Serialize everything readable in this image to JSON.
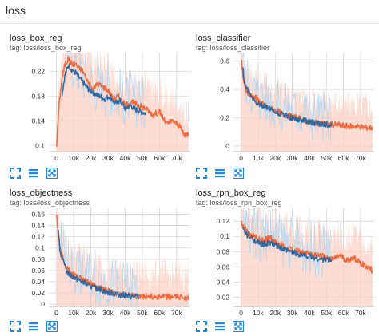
{
  "header": {
    "title": "loss"
  },
  "colors": {
    "series_smoothed": "#f4693b",
    "series_raw_bg": "#fbd0c4",
    "series_blue": "#2e6aa3",
    "series_blue_light": "#b8d8ee",
    "grid": "#d6d6d6",
    "control_icon": "#1e88e5"
  },
  "controls": {
    "icons": [
      "fit-domain-icon",
      "data-table-icon",
      "expand-chart-icon"
    ]
  },
  "cards": [
    {
      "id": "box_reg",
      "title": "loss_box_reg",
      "tag": "tag: loss/loss_box_reg",
      "chart_data": {
        "type": "line",
        "xlabel": "",
        "ylabel": "",
        "xlim": [
          -4500,
          78000
        ],
        "ylim": [
          0.09,
          0.25
        ],
        "y_ticks": [
          0.1,
          0.14,
          0.18,
          0.22
        ],
        "y_tick_labels": [
          "0.1",
          "0.14",
          "0.18",
          "0.22"
        ],
        "x_ticks": [
          0,
          10000,
          20000,
          30000,
          40000,
          50000,
          60000,
          70000
        ],
        "x_tick_labels": [
          "0",
          "10k",
          "20k",
          "30k",
          "40k",
          "50k",
          "60k",
          "70k"
        ],
        "grid": true,
        "series": [
          {
            "style": "orange",
            "x": [
              0,
              1500,
              3000,
              5000,
              7000,
              9000,
              11000,
              13000,
              15000,
              18000,
              21000,
              24000,
              27000,
              30000,
              33000,
              36000,
              40000,
              44000,
              48000,
              52000,
              56000,
              60000,
              64000,
              68000,
              72000,
              75000,
              77000
            ],
            "y": [
              0.1,
              0.165,
              0.205,
              0.232,
              0.24,
              0.232,
              0.232,
              0.225,
              0.222,
              0.205,
              0.19,
              0.2,
              0.195,
              0.19,
              0.175,
              0.18,
              0.165,
              0.17,
              0.165,
              0.16,
              0.15,
              0.155,
              0.135,
              0.14,
              0.13,
              0.115,
              0.12
            ]
          },
          {
            "style": "blue",
            "x": [
              3000,
              5000,
              7000,
              9000,
              11000,
              13000,
              16000,
              19000,
              22000,
              25000,
              28000,
              31000,
              34000,
              37000,
              40000,
              43000,
              46000,
              49000,
              52000
            ],
            "y": [
              0.18,
              0.215,
              0.23,
              0.222,
              0.218,
              0.21,
              0.2,
              0.19,
              0.185,
              0.18,
              0.175,
              0.18,
              0.168,
              0.172,
              0.16,
              0.165,
              0.158,
              0.155,
              0.152
            ]
          }
        ]
      }
    },
    {
      "id": "classifier",
      "title": "loss_classifier",
      "tag": "tag: loss/loss_classifier",
      "chart_data": {
        "type": "line",
        "xlabel": "",
        "ylabel": "",
        "xlim": [
          -4500,
          78000
        ],
        "ylim": [
          -0.04,
          0.66
        ],
        "y_ticks": [
          0,
          0.2,
          0.4,
          0.6
        ],
        "y_tick_labels": [
          "0",
          "0.2",
          "0.4",
          "0.6"
        ],
        "x_ticks": [
          0,
          10000,
          20000,
          30000,
          40000,
          50000,
          60000,
          70000
        ],
        "x_tick_labels": [
          "0",
          "10k",
          "20k",
          "30k",
          "40k",
          "50k",
          "60k",
          "70k"
        ],
        "grid": true,
        "series": [
          {
            "style": "orange",
            "x": [
              0,
              1000,
              2000,
              3500,
              5000,
              7000,
              9000,
              12000,
              15000,
              18000,
              21000,
              25000,
              29000,
              33000,
              37000,
              41000,
              45000,
              49000,
              53000,
              57000,
              61000,
              65000,
              69000,
              73000,
              77000
            ],
            "y": [
              0.62,
              0.5,
              0.42,
              0.38,
              0.36,
              0.35,
              0.34,
              0.3,
              0.28,
              0.26,
              0.25,
              0.22,
              0.21,
              0.2,
              0.18,
              0.17,
              0.16,
              0.16,
              0.15,
              0.15,
              0.14,
              0.14,
              0.14,
              0.13,
              0.13
            ]
          },
          {
            "style": "blue",
            "x": [
              1000,
              2000,
              3500,
              5000,
              7000,
              9000,
              12000,
              15000,
              18000,
              21000,
              25000,
              29000,
              33000,
              37000,
              41000,
              45000,
              49000,
              53000
            ],
            "y": [
              0.55,
              0.45,
              0.4,
              0.37,
              0.33,
              0.31,
              0.29,
              0.27,
              0.25,
              0.23,
              0.22,
              0.2,
              0.19,
              0.18,
              0.17,
              0.16,
              0.15,
              0.15
            ]
          }
        ]
      }
    },
    {
      "id": "objectness",
      "title": "loss_objectness",
      "tag": "tag: loss/loss_objectness",
      "chart_data": {
        "type": "line",
        "xlabel": "",
        "ylabel": "",
        "xlim": [
          -4500,
          78000
        ],
        "ylim": [
          -0.004,
          0.172
        ],
        "y_ticks": [
          0,
          0.02,
          0.04,
          0.06,
          0.08,
          0.1,
          0.12,
          0.14,
          0.16
        ],
        "y_tick_labels": [
          "0",
          "0.02",
          "0.04",
          "0.06",
          "0.08",
          "0.1",
          "0.12",
          "0.14",
          "0.16"
        ],
        "x_ticks": [
          0,
          10000,
          20000,
          30000,
          40000,
          50000,
          60000,
          70000
        ],
        "x_tick_labels": [
          "0",
          "10k",
          "20k",
          "30k",
          "40k",
          "50k",
          "60k",
          "70k"
        ],
        "grid": true,
        "series": [
          {
            "style": "orange",
            "x": [
              0,
              1000,
              2000,
              3500,
              5000,
              7000,
              9000,
              12000,
              15000,
              18000,
              21000,
              25000,
              29000,
              33000,
              37000,
              41000,
              45000,
              50000,
              55000,
              60000,
              65000,
              70000,
              74000,
              77000
            ],
            "y": [
              0.16,
              0.12,
              0.1,
              0.085,
              0.07,
              0.06,
              0.055,
              0.048,
              0.045,
              0.04,
              0.035,
              0.03,
              0.025,
              0.02,
              0.018,
              0.016,
              0.015,
              0.014,
              0.014,
              0.013,
              0.013,
              0.013,
              0.012,
              0.012
            ]
          },
          {
            "style": "blue",
            "x": [
              1000,
              2000,
              3500,
              5000,
              7000,
              9000,
              12000,
              15000,
              18000,
              21000,
              25000,
              29000,
              33000,
              37000,
              41000,
              45000,
              48000
            ],
            "y": [
              0.13,
              0.095,
              0.08,
              0.065,
              0.055,
              0.05,
              0.045,
              0.04,
              0.035,
              0.03,
              0.027,
              0.022,
              0.02,
              0.017,
              0.015,
              0.014,
              0.014
            ]
          }
        ]
      }
    },
    {
      "id": "rpn_box_reg",
      "title": "loss_rpn_box_reg",
      "tag": "tag: loss/loss_rpn_box_reg",
      "chart_data": {
        "type": "line",
        "xlabel": "",
        "ylabel": "",
        "xlim": [
          -4500,
          78000
        ],
        "ylim": [
          0.008,
          0.138
        ],
        "y_ticks": [
          0.02,
          0.04,
          0.06,
          0.08,
          0.1,
          0.12
        ],
        "y_tick_labels": [
          "0.02",
          "0.04",
          "0.06",
          "0.08",
          "0.1",
          "0.12"
        ],
        "x_ticks": [
          0,
          10000,
          20000,
          30000,
          40000,
          50000,
          60000,
          70000
        ],
        "x_tick_labels": [
          "0",
          "10k",
          "20k",
          "30k",
          "40k",
          "50k",
          "60k",
          "70k"
        ],
        "grid": true,
        "series": [
          {
            "style": "orange",
            "x": [
              0,
              1000,
              2500,
              4000,
              6000,
              8000,
              11000,
              14000,
              17000,
              20000,
              23000,
              26000,
              30000,
              34000,
              38000,
              42000,
              46000,
              50000,
              54000,
              58000,
              62000,
              66000,
              70000,
              74000,
              77000
            ],
            "y": [
              0.12,
              0.115,
              0.11,
              0.105,
              0.1,
              0.1,
              0.095,
              0.095,
              0.1,
              0.092,
              0.09,
              0.085,
              0.083,
              0.08,
              0.078,
              0.075,
              0.075,
              0.072,
              0.07,
              0.075,
              0.068,
              0.072,
              0.065,
              0.06,
              0.055
            ]
          },
          {
            "style": "blue",
            "x": [
              1000,
              2500,
              4000,
              6000,
              8000,
              11000,
              14000,
              17000,
              20000,
              23000,
              26000,
              30000,
              34000,
              38000,
              42000,
              46000,
              50000,
              53000
            ],
            "y": [
              0.11,
              0.105,
              0.1,
              0.098,
              0.095,
              0.09,
              0.09,
              0.092,
              0.088,
              0.085,
              0.082,
              0.08,
              0.077,
              0.075,
              0.073,
              0.07,
              0.07,
              0.068
            ]
          }
        ]
      }
    }
  ]
}
